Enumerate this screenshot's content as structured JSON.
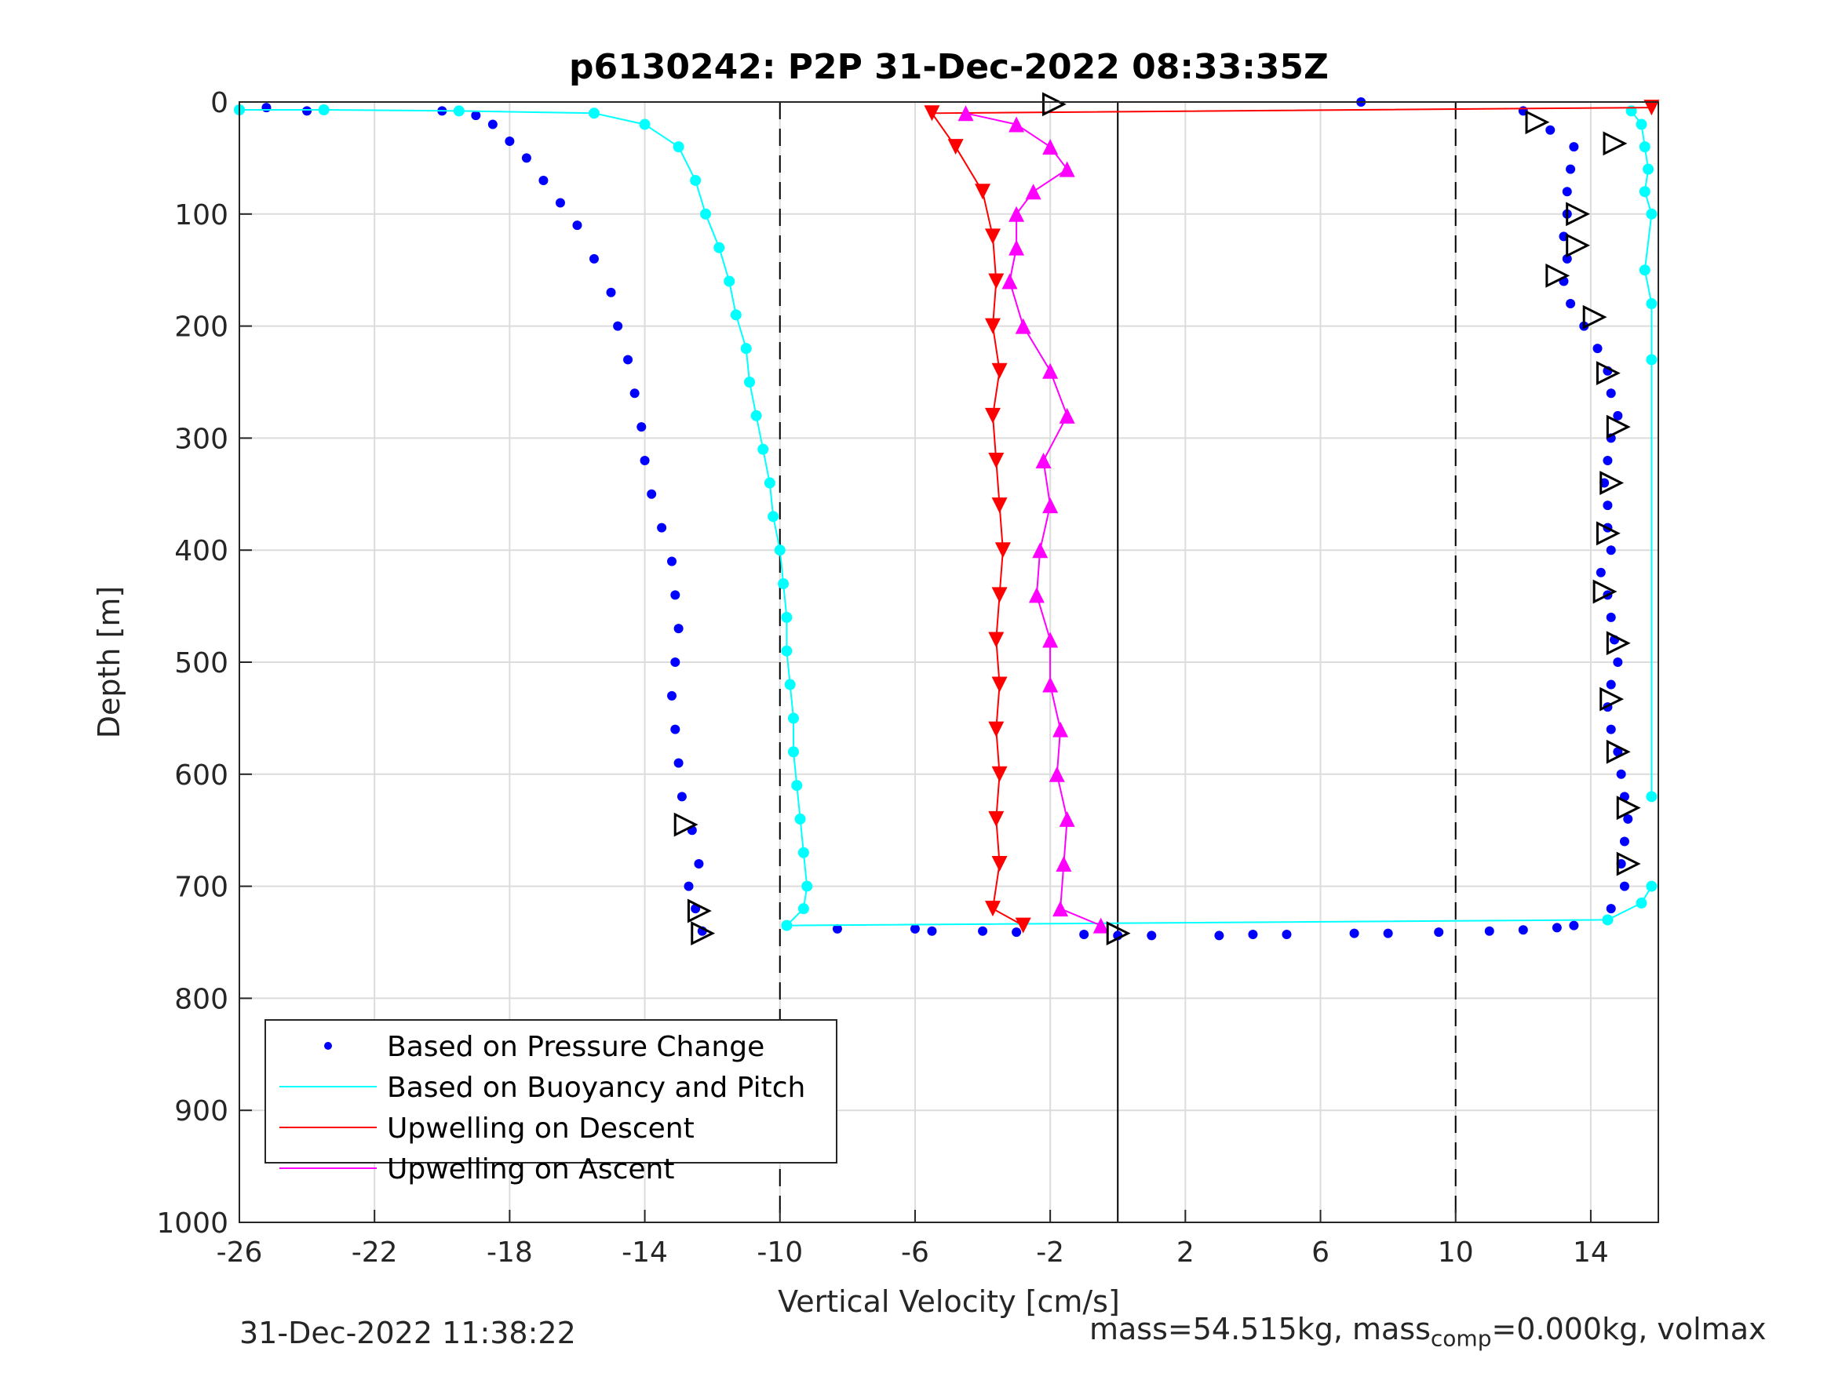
{
  "chart_data": {
    "type": "scatter",
    "title": "p6130242: P2P 31-Dec-2022 08:33:35Z",
    "xlabel": "Vertical Velocity [cm/s]",
    "ylabel": "Depth [m]",
    "xlim": [
      -26,
      16
    ],
    "ylim": [
      0,
      1000
    ],
    "y_reversed": true,
    "grid": true,
    "xticks": [
      -26,
      -22,
      -18,
      -14,
      -10,
      -6,
      -2,
      2,
      6,
      10,
      14
    ],
    "yticks": [
      0,
      100,
      200,
      300,
      400,
      500,
      600,
      700,
      800,
      900,
      1000
    ],
    "reference_lines": [
      {
        "x": -10,
        "style": "dashed"
      },
      {
        "x": 0,
        "style": "solid"
      },
      {
        "x": 10,
        "style": "dashed"
      }
    ],
    "legend": {
      "placement": "bottom-left",
      "entries": [
        {
          "label": "Based on Pressure Change",
          "color": "#0000ff",
          "marker": "dot"
        },
        {
          "label": "Based on Buoyancy and Pitch",
          "color": "#00ffff",
          "marker": "line"
        },
        {
          "label": "Upwelling on Descent",
          "color": "#ff0000",
          "marker": "line"
        },
        {
          "label": "Upwelling on Ascent",
          "color": "#ff00ff",
          "marker": "line"
        }
      ]
    },
    "series": [
      {
        "name": "Based on Pressure Change (descent)",
        "color": "#0000ff",
        "points": [
          [
            -25.2,
            5
          ],
          [
            -24,
            8
          ],
          [
            -20,
            8
          ],
          [
            -19,
            12
          ],
          [
            -18.5,
            20
          ],
          [
            -18,
            35
          ],
          [
            -17.5,
            50
          ],
          [
            -17,
            70
          ],
          [
            -16.5,
            90
          ],
          [
            -16,
            110
          ],
          [
            -15.5,
            140
          ],
          [
            -15,
            170
          ],
          [
            -14.8,
            200
          ],
          [
            -14.5,
            230
          ],
          [
            -14.3,
            260
          ],
          [
            -14.1,
            290
          ],
          [
            -14,
            320
          ],
          [
            -13.8,
            350
          ],
          [
            -13.5,
            380
          ],
          [
            -13.2,
            410
          ],
          [
            -13.1,
            440
          ],
          [
            -13,
            470
          ],
          [
            -13.1,
            500
          ],
          [
            -13.2,
            530
          ],
          [
            -13.1,
            560
          ],
          [
            -13,
            590
          ],
          [
            -12.9,
            620
          ],
          [
            -12.6,
            650
          ],
          [
            -12.4,
            680
          ],
          [
            -12.7,
            700
          ],
          [
            -12.5,
            720
          ],
          [
            -12.3,
            740
          ]
        ]
      },
      {
        "name": "Based on Pressure Change (ascent)",
        "color": "#0000ff",
        "points": [
          [
            7.2,
            0
          ],
          [
            12,
            8
          ],
          [
            12.8,
            25
          ],
          [
            13.5,
            40
          ],
          [
            13.4,
            60
          ],
          [
            13.3,
            80
          ],
          [
            13.3,
            100
          ],
          [
            13.2,
            120
          ],
          [
            13.3,
            140
          ],
          [
            13.2,
            160
          ],
          [
            13.4,
            180
          ],
          [
            13.8,
            200
          ],
          [
            14.2,
            220
          ],
          [
            14.5,
            240
          ],
          [
            14.6,
            260
          ],
          [
            14.8,
            280
          ],
          [
            14.6,
            300
          ],
          [
            14.5,
            320
          ],
          [
            14.4,
            340
          ],
          [
            14.5,
            360
          ],
          [
            14.5,
            380
          ],
          [
            14.6,
            400
          ],
          [
            14.3,
            420
          ],
          [
            14.5,
            440
          ],
          [
            14.6,
            460
          ],
          [
            14.7,
            480
          ],
          [
            14.8,
            500
          ],
          [
            14.6,
            520
          ],
          [
            14.5,
            540
          ],
          [
            14.6,
            560
          ],
          [
            14.8,
            580
          ],
          [
            14.9,
            600
          ],
          [
            15,
            620
          ],
          [
            15.1,
            640
          ],
          [
            15,
            660
          ],
          [
            14.9,
            680
          ],
          [
            15,
            700
          ],
          [
            14.6,
            720
          ],
          [
            13.5,
            735
          ]
        ]
      },
      {
        "name": "Based on Pressure Change (bottom)",
        "color": "#0000ff",
        "points": [
          [
            -8.3,
            738
          ],
          [
            -6,
            738
          ],
          [
            -5.5,
            740
          ],
          [
            -4,
            740
          ],
          [
            -3,
            741
          ],
          [
            -1,
            743
          ],
          [
            0,
            744
          ],
          [
            1,
            744
          ],
          [
            3,
            744
          ],
          [
            4,
            743
          ],
          [
            5,
            743
          ],
          [
            7,
            742
          ],
          [
            8,
            742
          ],
          [
            9.5,
            741
          ],
          [
            11,
            740
          ],
          [
            12,
            739
          ],
          [
            13,
            737
          ]
        ]
      },
      {
        "name": "Based on Buoyancy and Pitch",
        "color": "#00ffff",
        "points": [
          [
            -26,
            7
          ],
          [
            -23.5,
            7
          ],
          [
            -19.5,
            8
          ],
          [
            -15.5,
            10
          ],
          [
            -14,
            20
          ],
          [
            -13,
            40
          ],
          [
            -12.5,
            70
          ],
          [
            -12.2,
            100
          ],
          [
            -11.8,
            130
          ],
          [
            -11.5,
            160
          ],
          [
            -11.3,
            190
          ],
          [
            -11,
            220
          ],
          [
            -10.9,
            250
          ],
          [
            -10.7,
            280
          ],
          [
            -10.5,
            310
          ],
          [
            -10.3,
            340
          ],
          [
            -10.2,
            370
          ],
          [
            -10,
            400
          ],
          [
            -9.9,
            430
          ],
          [
            -9.8,
            460
          ],
          [
            -9.8,
            490
          ],
          [
            -9.7,
            520
          ],
          [
            -9.6,
            550
          ],
          [
            -9.6,
            580
          ],
          [
            -9.5,
            610
          ],
          [
            -9.4,
            640
          ],
          [
            -9.3,
            670
          ],
          [
            -9.2,
            700
          ],
          [
            -9.3,
            720
          ],
          [
            -9.8,
            735
          ],
          [
            14.5,
            730
          ],
          [
            15.5,
            715
          ],
          [
            15.8,
            700
          ]
        ]
      },
      {
        "name": "Based on Buoyancy and Pitch (ascent)",
        "color": "#00ffff",
        "points": [
          [
            15.2,
            8
          ],
          [
            15.5,
            20
          ],
          [
            15.6,
            40
          ],
          [
            15.7,
            60
          ],
          [
            15.6,
            80
          ],
          [
            15.8,
            100
          ],
          [
            15.6,
            150
          ],
          [
            15.8,
            180
          ],
          [
            15.8,
            230
          ],
          [
            15.8,
            620
          ]
        ]
      },
      {
        "name": "Upwelling on Descent",
        "color": "#ff0000",
        "points": [
          [
            15.8,
            5
          ],
          [
            -5.5,
            10
          ],
          [
            -4.8,
            40
          ],
          [
            -4,
            80
          ],
          [
            -3.7,
            120
          ],
          [
            -3.6,
            160
          ],
          [
            -3.7,
            200
          ],
          [
            -3.5,
            240
          ],
          [
            -3.7,
            280
          ],
          [
            -3.6,
            320
          ],
          [
            -3.5,
            360
          ],
          [
            -3.4,
            400
          ],
          [
            -3.5,
            440
          ],
          [
            -3.6,
            480
          ],
          [
            -3.5,
            520
          ],
          [
            -3.6,
            560
          ],
          [
            -3.5,
            600
          ],
          [
            -3.6,
            640
          ],
          [
            -3.5,
            680
          ],
          [
            -3.7,
            720
          ],
          [
            -2.8,
            735
          ]
        ]
      },
      {
        "name": "Upwelling on Ascent",
        "color": "#ff00ff",
        "points": [
          [
            -4.5,
            10
          ],
          [
            -3,
            20
          ],
          [
            -2,
            40
          ],
          [
            -1.5,
            60
          ],
          [
            -2.5,
            80
          ],
          [
            -3,
            100
          ],
          [
            -3,
            130
          ],
          [
            -3.2,
            160
          ],
          [
            -2.8,
            200
          ],
          [
            -2,
            240
          ],
          [
            -1.5,
            280
          ],
          [
            -2.2,
            320
          ],
          [
            -2,
            360
          ],
          [
            -2.3,
            400
          ],
          [
            -2.4,
            440
          ],
          [
            -2,
            480
          ],
          [
            -2,
            520
          ],
          [
            -1.7,
            560
          ],
          [
            -1.8,
            600
          ],
          [
            -1.5,
            640
          ],
          [
            -1.6,
            680
          ],
          [
            -1.7,
            720
          ],
          [
            -0.5,
            735
          ]
        ]
      },
      {
        "name": "Ascent markers",
        "color": "#000000",
        "points": [
          [
            -1.9,
            2
          ],
          [
            12.4,
            18
          ],
          [
            14.7,
            37
          ],
          [
            13.6,
            100
          ],
          [
            13.6,
            128
          ],
          [
            13.0,
            155
          ],
          [
            14.1,
            192
          ],
          [
            14.5,
            242
          ],
          [
            14.8,
            290
          ],
          [
            14.6,
            340
          ],
          [
            14.5,
            385
          ],
          [
            14.4,
            437
          ],
          [
            14.8,
            483
          ],
          [
            14.6,
            533
          ],
          [
            14.8,
            580
          ],
          [
            15.1,
            630
          ],
          [
            15.1,
            680
          ],
          [
            -12.8,
            645
          ],
          [
            -12.4,
            722
          ],
          [
            -12.3,
            742
          ],
          [
            0,
            742
          ]
        ]
      }
    ]
  },
  "footer": {
    "timestamp": "31-Dec-2022 11:38:22",
    "mass_prefix": "mass=54.515kg, mass",
    "mass_sub": "comp",
    "mass_suffix": "=0.000kg, volmax"
  }
}
